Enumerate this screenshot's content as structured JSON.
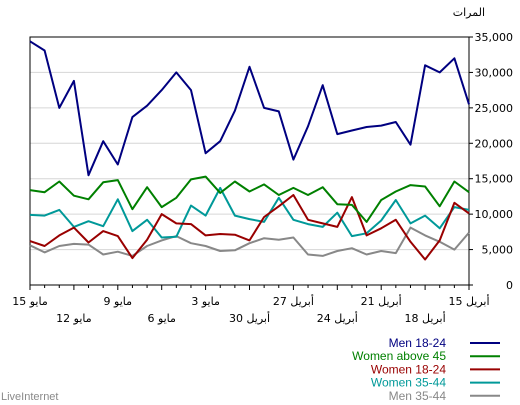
{
  "chart_data": {
    "type": "line",
    "ylabel": "المرات",
    "ylim": [
      0,
      35000
    ],
    "yticks": [
      0,
      5000,
      10000,
      15000,
      20000,
      25000,
      30000,
      35000
    ],
    "ytick_labels": [
      "0",
      "5,000",
      "10,000",
      "15,000",
      "20,000",
      "25,000",
      "30,000",
      "35,000"
    ],
    "x_axis": {
      "order": "right-to-left",
      "count": 31,
      "tick_labels": [
        {
          "index": 0,
          "text": "15 أبريل",
          "row": 1
        },
        {
          "index": 3,
          "text": "18 أبريل",
          "row": 2
        },
        {
          "index": 6,
          "text": "21 أبريل",
          "row": 1
        },
        {
          "index": 9,
          "text": "24 أبريل",
          "row": 2
        },
        {
          "index": 12,
          "text": "27 أبريل",
          "row": 1
        },
        {
          "index": 15,
          "text": "30 أبريل",
          "row": 2
        },
        {
          "index": 18,
          "text": "3 مايو",
          "row": 1
        },
        {
          "index": 21,
          "text": "6 مايو",
          "row": 2
        },
        {
          "index": 24,
          "text": "9 مايو",
          "row": 1
        },
        {
          "index": 27,
          "text": "12 مايو",
          "row": 2
        },
        {
          "index": 30,
          "text": "15 مايو",
          "row": 1
        }
      ]
    },
    "grid": true,
    "series": [
      {
        "name": "Men 18-24",
        "color": "#000080",
        "values": [
          25500,
          32000,
          30000,
          31000,
          19800,
          23000,
          22500,
          22300,
          21800,
          21300,
          28200,
          22400,
          17700,
          24500,
          25000,
          30800,
          24600,
          20300,
          18600,
          27500,
          30000,
          27500,
          25300,
          23700,
          17000,
          20300,
          15500,
          28800,
          25000,
          33100,
          34400
        ]
      },
      {
        "name": "Women above 45",
        "color": "#008000",
        "values": [
          13100,
          14600,
          11100,
          13900,
          14100,
          13200,
          12000,
          8900,
          11300,
          11400,
          13800,
          12700,
          13700,
          12700,
          14200,
          13200,
          14600,
          13000,
          15300,
          14900,
          12300,
          11000,
          13800,
          10700,
          14800,
          14500,
          12100,
          12600,
          14600,
          13100,
          13400
        ]
      },
      {
        "name": "Women 18-24",
        "color": "#990000",
        "values": [
          10100,
          11600,
          6300,
          3600,
          6100,
          9200,
          8000,
          7000,
          12400,
          8200,
          8700,
          9200,
          12700,
          11100,
          9600,
          6300,
          7100,
          7200,
          7000,
          8600,
          8700,
          10000,
          6400,
          3800,
          6900,
          7600,
          6000,
          8100,
          7000,
          5500,
          6200
        ]
      },
      {
        "name": "Women 35-44",
        "color": "#009999",
        "values": [
          10600,
          11000,
          8000,
          9800,
          8700,
          12000,
          9100,
          7300,
          6900,
          10200,
          8200,
          8600,
          9200,
          12300,
          8900,
          9300,
          9800,
          13700,
          9800,
          11200,
          6800,
          6700,
          9200,
          7600,
          12100,
          8300,
          9000,
          8200,
          10600,
          9800,
          9900
        ]
      },
      {
        "name": "Men 35-44",
        "color": "#888888",
        "values": [
          7400,
          5000,
          6100,
          7000,
          8100,
          4500,
          4800,
          4300,
          5200,
          4800,
          4100,
          4300,
          6700,
          6400,
          6600,
          5900,
          4900,
          4800,
          5500,
          5900,
          6900,
          6300,
          5500,
          4100,
          4700,
          4300,
          5700,
          5800,
          5500,
          4600,
          5600
        ]
      }
    ],
    "legend": {
      "placement": "bottom-right"
    }
  },
  "footer": {
    "credit": "LiveInternet"
  }
}
